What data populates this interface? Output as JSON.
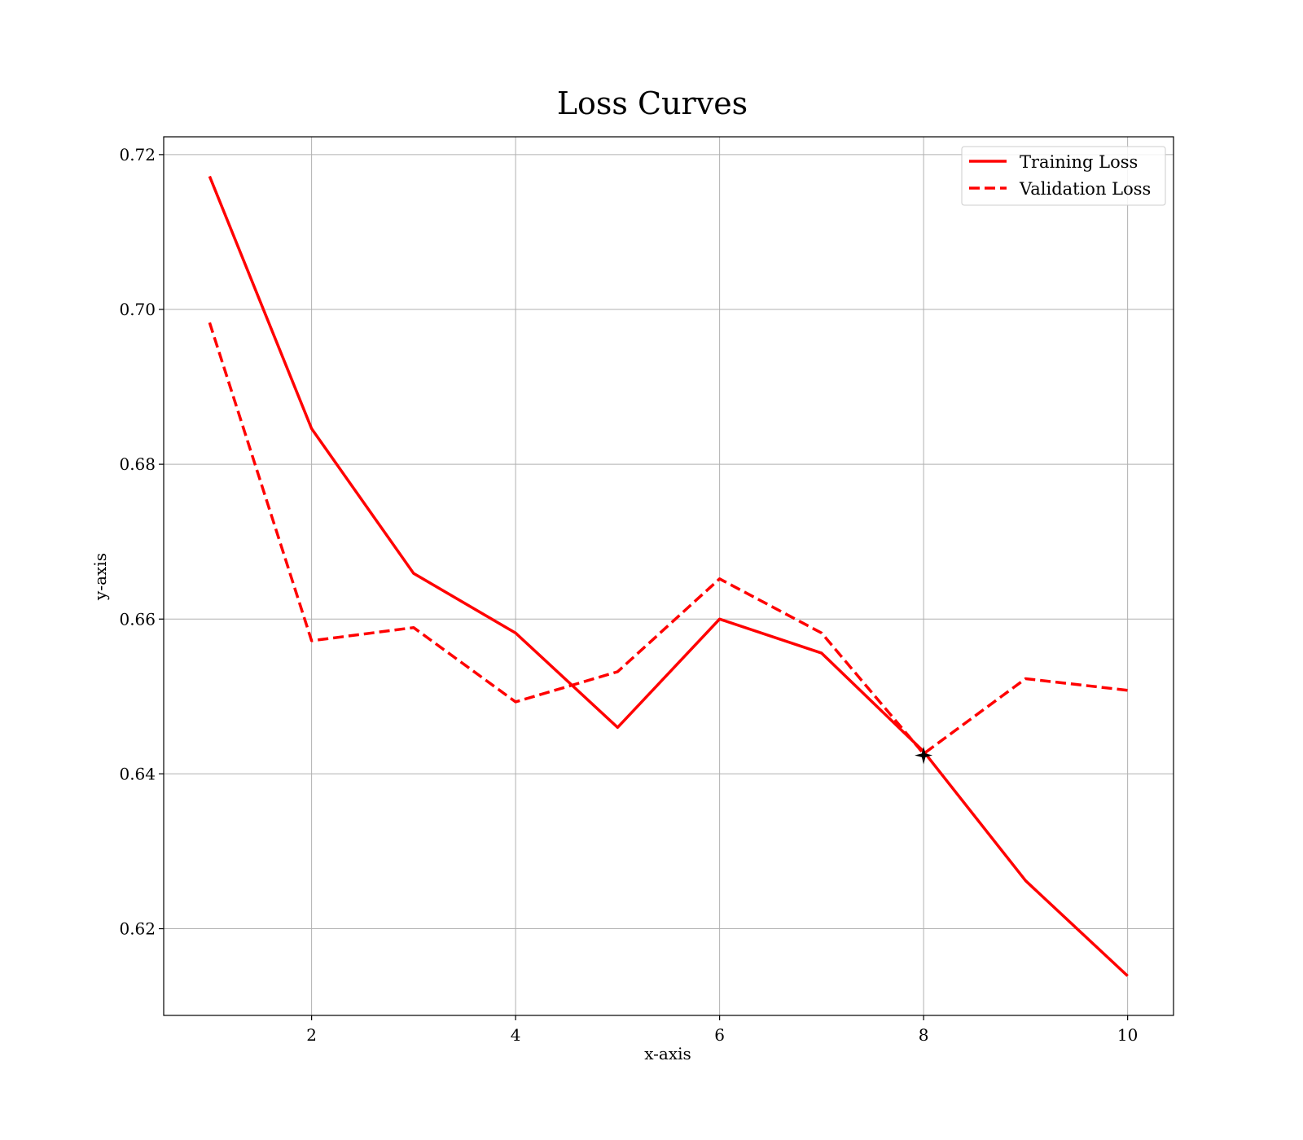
{
  "chart_data": {
    "type": "line",
    "title": "Loss Curves",
    "xlabel": "x-axis",
    "ylabel": "y-axis",
    "xlim": [
      0.55,
      10.45
    ],
    "ylim": [
      0.6088,
      0.7223
    ],
    "xticks": [
      2,
      4,
      6,
      8,
      10
    ],
    "yticks": [
      0.62,
      0.64,
      0.66,
      0.68,
      0.7,
      0.72
    ],
    "xtick_labels": [
      "2",
      "4",
      "6",
      "8",
      "10"
    ],
    "ytick_labels": [
      "0.62",
      "0.64",
      "0.66",
      "0.68",
      "0.70",
      "0.72"
    ],
    "grid": true,
    "legend_position": "top-right",
    "x": [
      1,
      2,
      3,
      4,
      5,
      6,
      7,
      8,
      9,
      10
    ],
    "series": [
      {
        "name": "Training Loss",
        "style": "solid",
        "color": "#ff0000",
        "values": [
          0.7172,
          0.6846,
          0.6659,
          0.6582,
          0.646,
          0.66,
          0.6556,
          0.6429,
          0.6262,
          0.6139
        ]
      },
      {
        "name": "Validation Loss",
        "style": "dashed",
        "color": "#ff0000",
        "values": [
          0.6983,
          0.6572,
          0.6589,
          0.6493,
          0.6532,
          0.6652,
          0.6582,
          0.6426,
          0.6523,
          0.6508
        ]
      }
    ],
    "marker": {
      "x": 8,
      "y": 0.6424,
      "symbol": "star",
      "color": "#000000"
    }
  }
}
